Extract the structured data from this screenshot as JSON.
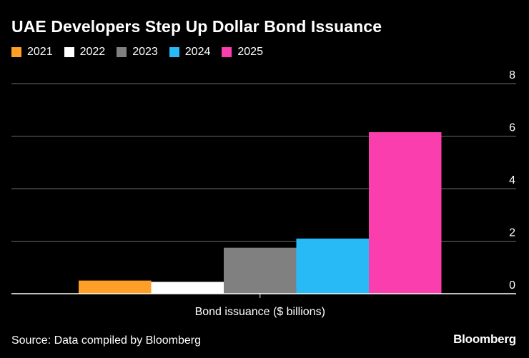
{
  "header": {
    "title": "UAE Developers Step Up Dollar Bond Issuance"
  },
  "footer": {
    "source": "Source: Data compiled by Bloomberg",
    "brand": "Bloomberg"
  },
  "chart_data": {
    "type": "bar",
    "title": "UAE Developers Step Up Dollar Bond Issuance",
    "categories": [
      "Bond issuance ($ billions)"
    ],
    "xlabel": "",
    "ylabel": "",
    "ylim": [
      0,
      8
    ],
    "yticks": [
      0,
      2,
      4,
      6,
      8
    ],
    "grid": true,
    "legend_position": "top-left",
    "series": [
      {
        "name": "2021",
        "values": [
          0.5
        ],
        "color": "#ff9f27"
      },
      {
        "name": "2022",
        "values": [
          0.45
        ],
        "color": "#ffffff"
      },
      {
        "name": "2023",
        "values": [
          1.75
        ],
        "color": "#808080"
      },
      {
        "name": "2024",
        "values": [
          2.1
        ],
        "color": "#28baf6"
      },
      {
        "name": "2025",
        "values": [
          6.15
        ],
        "color": "#fb3ead"
      }
    ]
  }
}
